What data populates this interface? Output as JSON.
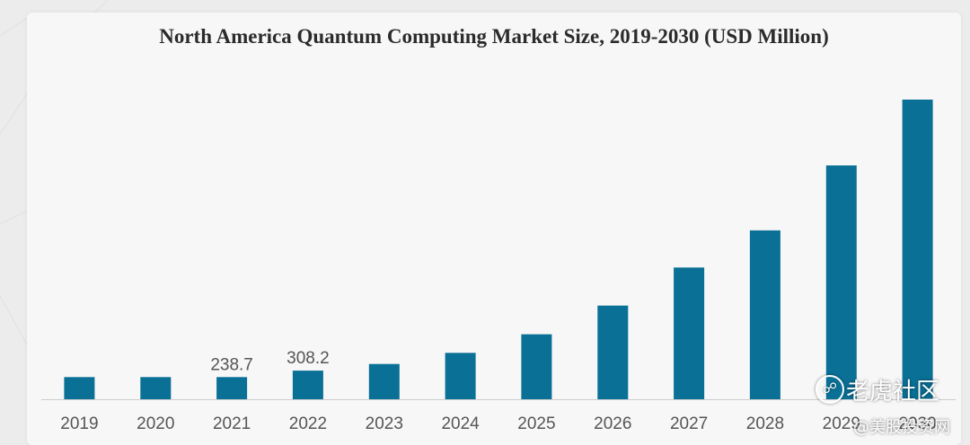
{
  "chart_data": {
    "type": "bar",
    "title": "North America Quantum Computing Market Size, 2019-2030 (USD Million)",
    "xlabel": "",
    "ylabel": "",
    "categories": [
      "2019",
      "2020",
      "2021",
      "2022",
      "2023",
      "2024",
      "2025",
      "2026",
      "2027",
      "2028",
      "2029",
      "2030"
    ],
    "values": [
      238.7,
      238.7,
      238.7,
      308.2,
      380,
      500,
      700,
      1010,
      1420,
      1820,
      2520,
      3230
    ],
    "data_labels": [
      "",
      "",
      "238.7",
      "308.2",
      "",
      "",
      "",
      "",
      "",
      "",
      "",
      ""
    ],
    "ylim": [
      0,
      3230
    ],
    "grid": false,
    "legend": "none",
    "bar_color": "#0a7096"
  },
  "watermark": {
    "line1": "老虎社区",
    "line2": "@美股投资网"
  },
  "colors": {
    "bar": "#0a7096",
    "axis": "#cccccc",
    "card_bg": "#f7f7f7",
    "page_bg": "#ececec"
  }
}
